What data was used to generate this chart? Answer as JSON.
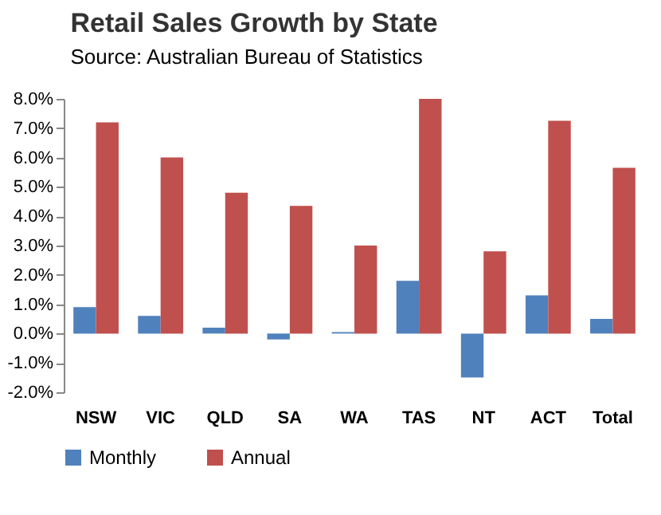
{
  "chart_data": {
    "type": "bar",
    "title": "Retail Sales Growth by State",
    "subtitle": "Source: Australian Bureau of Statistics",
    "categories": [
      "NSW",
      "VIC",
      "QLD",
      "SA",
      "WA",
      "TAS",
      "NT",
      "ACT",
      "Total"
    ],
    "series": [
      {
        "name": "Monthly",
        "color": "#4f81bd",
        "values": [
          0.9,
          0.6,
          0.2,
          -0.2,
          0.05,
          1.8,
          -1.5,
          1.3,
          0.5
        ]
      },
      {
        "name": "Annual",
        "color": "#c0504d",
        "values": [
          7.2,
          6.0,
          4.8,
          4.35,
          3.0,
          8.0,
          2.8,
          7.25,
          5.65
        ]
      }
    ],
    "ylim": [
      -2,
      8
    ],
    "yticks": [
      {
        "value": -2,
        "label": "-2.0%"
      },
      {
        "value": -1,
        "label": "-1.0%"
      },
      {
        "value": 0,
        "label": "0.0%"
      },
      {
        "value": 1,
        "label": "1.0%"
      },
      {
        "value": 2,
        "label": "2.0%"
      },
      {
        "value": 3,
        "label": "3.0%"
      },
      {
        "value": 4,
        "label": "4.0%"
      },
      {
        "value": 5,
        "label": "5.0%"
      },
      {
        "value": 6,
        "label": "6.0%"
      },
      {
        "value": 7,
        "label": "7.0%"
      },
      {
        "value": 8,
        "label": "8.0%"
      }
    ],
    "grid": false,
    "legend": "bottom"
  }
}
